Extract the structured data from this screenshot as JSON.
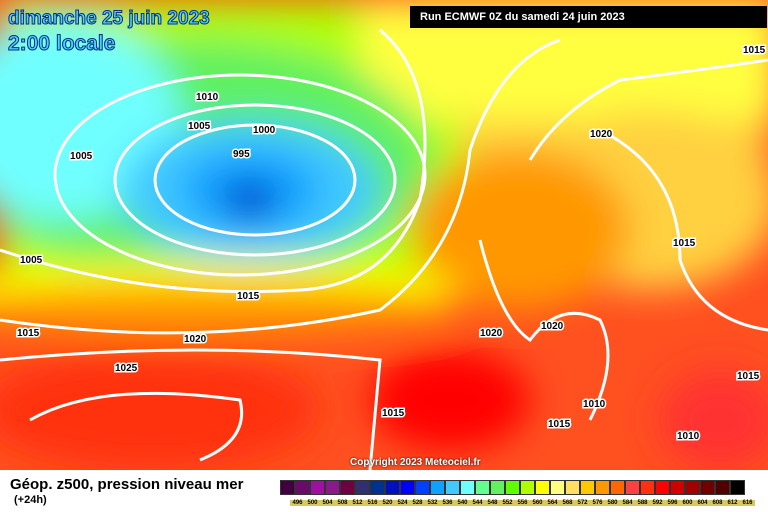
{
  "header": {
    "date": "dimanche 25 juin 2023",
    "time": "2:00 locale",
    "run": "Run ECMWF 0Z du samedi 24 juin 2023"
  },
  "copyright": "Copyright 2023 Meteociel.fr",
  "legend": {
    "title": "Géop. z500, pression niveau mer",
    "subtitle": "(+24h)",
    "ticks": [
      "496",
      "500",
      "504",
      "508",
      "512",
      "516",
      "520",
      "524",
      "528",
      "532",
      "536",
      "540",
      "544",
      "548",
      "552",
      "556",
      "560",
      "564",
      "568",
      "572",
      "576",
      "580",
      "584",
      "588",
      "592",
      "596",
      "600",
      "604",
      "608",
      "612",
      "616"
    ],
    "colors": [
      "#400040",
      "#6a0a6a",
      "#a010a0",
      "#8a1a8a",
      "#700040",
      "#303070",
      "#003090",
      "#0010c0",
      "#0000ff",
      "#0040ff",
      "#10a0ff",
      "#40c8ff",
      "#70ffff",
      "#60ff90",
      "#60f060",
      "#60ff00",
      "#b0ff00",
      "#ffff00",
      "#ffff80",
      "#ffe060",
      "#ffc800",
      "#ff9800",
      "#ff6800",
      "#ff4040",
      "#ff3010",
      "#ff0000",
      "#d00000",
      "#a00000",
      "#700000",
      "#500000",
      "#000000"
    ]
  },
  "isobars": [
    "1015",
    "1010",
    "1005",
    "1000",
    "995",
    "1005",
    "1020",
    "1005",
    "1015",
    "1015",
    "1020",
    "1025",
    "1020",
    "1020",
    "1015",
    "1015",
    "1010",
    "1015",
    "1010",
    "1015"
  ]
}
